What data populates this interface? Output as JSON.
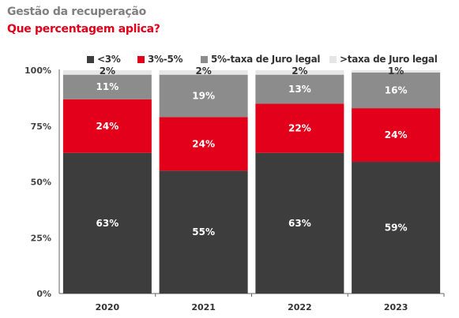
{
  "header": {
    "title": "Gestão da recuperação",
    "subtitle": "Que percentagem aplica?"
  },
  "chart_data": {
    "type": "bar",
    "stacked": true,
    "categories": [
      "2020",
      "2021",
      "2022",
      "2023"
    ],
    "series": [
      {
        "name": "<3%",
        "color": "#3d3d3d",
        "label_color": "#ffffff",
        "values": [
          63,
          55,
          63,
          59
        ]
      },
      {
        "name": "3%-5%",
        "color": "#e2001a",
        "label_color": "#ffffff",
        "values": [
          24,
          24,
          22,
          24
        ]
      },
      {
        "name": "5%-taxa de Juro legal",
        "color": "#8c8c8c",
        "label_color": "#ffffff",
        "values": [
          11,
          19,
          13,
          16
        ]
      },
      {
        "name": ">taxa de Juro legal",
        "color": "#e6e6e6",
        "label_color": "#333333",
        "values": [
          2,
          2,
          2,
          1
        ]
      }
    ],
    "ylim": [
      0,
      100
    ],
    "yticks": [
      "0%",
      "25%",
      "50%",
      "75%",
      "100%"
    ],
    "legend": "top",
    "grid": false
  }
}
